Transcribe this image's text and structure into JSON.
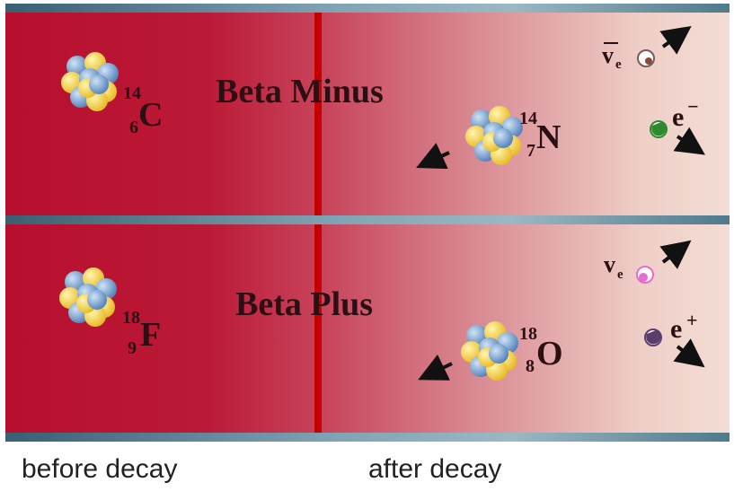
{
  "top_panel": {
    "title": "Beta Minus",
    "parent": {
      "mass": "14",
      "atomic": "6",
      "symbol": "C"
    },
    "daughter": {
      "mass": "14",
      "atomic": "7",
      "symbol": "N"
    },
    "antineutrino": {
      "symbol": "v",
      "sub": "e"
    },
    "electron": {
      "symbol": "e",
      "charge": "−"
    }
  },
  "bottom_panel": {
    "title": "Beta Plus",
    "parent": {
      "mass": "18",
      "atomic": "9",
      "symbol": "F"
    },
    "daughter": {
      "mass": "18",
      "atomic": "8",
      "symbol": "O"
    },
    "neutrino": {
      "symbol": "v",
      "sub": "e"
    },
    "positron": {
      "symbol": "e",
      "charge": "+"
    }
  },
  "captions": {
    "before": "before decay",
    "after": "after decay"
  },
  "colors": {
    "proton": "#f2d23a",
    "neutron": "#6e9fd6",
    "divider": "#c40000",
    "electron": "#2f8a2f",
    "positron": "#5a3d6b",
    "neutrino": "#e66bd0"
  }
}
